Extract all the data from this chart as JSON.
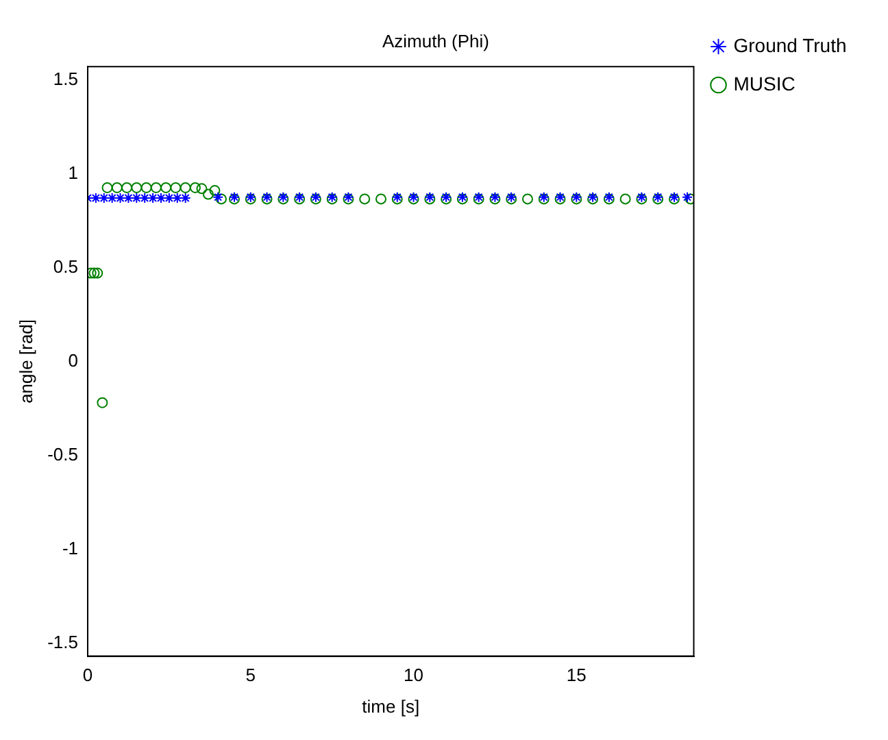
{
  "chart_data": {
    "type": "scatter",
    "title": "Azimuth (Phi)",
    "xlabel": "time [s]",
    "ylabel": "angle [rad]",
    "xlim": [
      0,
      18.6
    ],
    "ylim": [
      -1.57,
      1.57
    ],
    "xticks": [
      0,
      5,
      10,
      15
    ],
    "yticks": [
      -1.5,
      -1,
      -0.5,
      0,
      0.5,
      1,
      1.5
    ],
    "grid": false,
    "legend": "top right",
    "series": [
      {
        "name": "Ground Truth",
        "color": "#0000ff",
        "marker": "cross",
        "x": [
          0,
          0.25,
          0.5,
          0.75,
          1,
          1.25,
          1.5,
          1.75,
          2,
          2.25,
          2.5,
          2.75,
          3,
          4,
          4.5,
          5,
          5.5,
          6,
          6.5,
          7,
          7.5,
          8,
          9.5,
          10,
          10.5,
          11,
          11.5,
          12,
          12.5,
          13,
          14,
          14.5,
          15,
          15.5,
          16,
          17,
          17.5,
          18,
          18.4
        ],
        "values": [
          0.87,
          0.87,
          0.87,
          0.87,
          0.87,
          0.87,
          0.87,
          0.87,
          0.87,
          0.87,
          0.87,
          0.87,
          0.87,
          0.875,
          0.875,
          0.875,
          0.875,
          0.875,
          0.875,
          0.875,
          0.875,
          0.875,
          0.875,
          0.875,
          0.875,
          0.875,
          0.875,
          0.875,
          0.875,
          0.875,
          0.875,
          0.875,
          0.875,
          0.875,
          0.875,
          0.875,
          0.875,
          0.875,
          0.875
        ]
      },
      {
        "name": "MUSIC",
        "color": "#008000",
        "marker": "circle",
        "x": [
          0.1,
          0.2,
          0.3,
          0.45,
          0.6,
          0.9,
          1.2,
          1.5,
          1.8,
          2.1,
          2.4,
          2.7,
          3,
          3.3,
          3.5,
          3.7,
          3.9,
          4.1,
          4.5,
          5,
          5.5,
          6,
          6.5,
          7,
          7.5,
          8,
          8.5,
          9,
          9.5,
          10,
          10.5,
          11,
          11.5,
          12,
          12.5,
          13,
          13.5,
          14,
          14.5,
          15,
          15.5,
          16,
          16.5,
          17,
          17.5,
          18,
          18.5
        ],
        "values": [
          0.47,
          0.47,
          0.47,
          -0.22,
          0.925,
          0.925,
          0.925,
          0.925,
          0.925,
          0.925,
          0.925,
          0.925,
          0.925,
          0.925,
          0.92,
          0.89,
          0.91,
          0.865,
          0.865,
          0.865,
          0.865,
          0.865,
          0.865,
          0.865,
          0.865,
          0.865,
          0.865,
          0.865,
          0.865,
          0.865,
          0.865,
          0.865,
          0.865,
          0.865,
          0.865,
          0.865,
          0.865,
          0.865,
          0.865,
          0.865,
          0.865,
          0.865,
          0.865,
          0.865,
          0.865,
          0.865,
          0.865
        ]
      }
    ]
  }
}
